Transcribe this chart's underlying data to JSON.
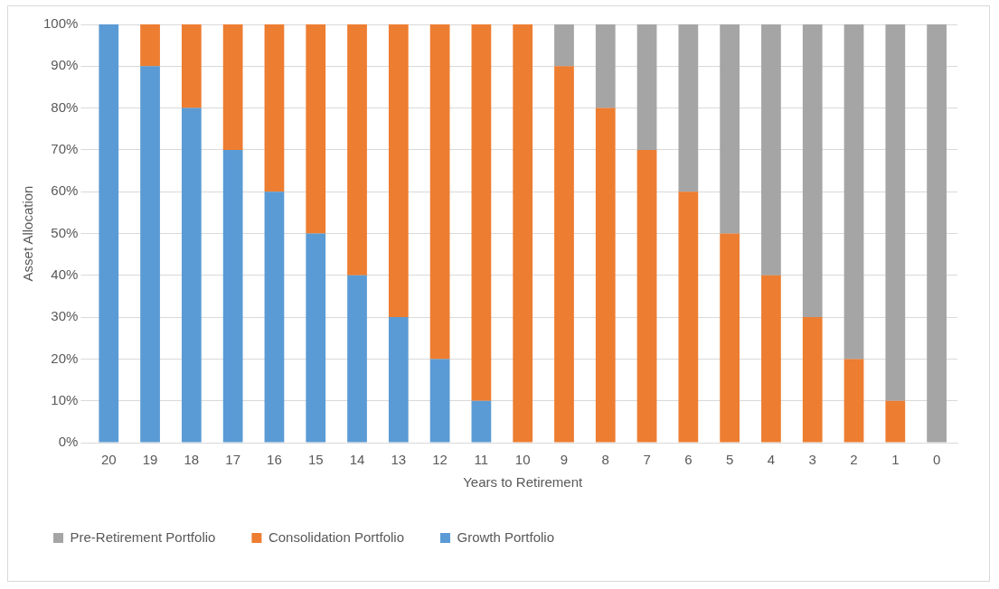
{
  "chart_data": {
    "type": "bar",
    "stacked": true,
    "xlabel": "Years to Retirement",
    "ylabel": "Asset Allocation",
    "categories": [
      "20",
      "19",
      "18",
      "17",
      "16",
      "15",
      "14",
      "13",
      "12",
      "11",
      "10",
      "9",
      "8",
      "7",
      "6",
      "5",
      "4",
      "3",
      "2",
      "1",
      "0"
    ],
    "series": [
      {
        "name": "Growth Portfolio",
        "color": "#5b9bd5",
        "values": [
          100,
          90,
          80,
          70,
          60,
          50,
          40,
          30,
          20,
          10,
          0,
          0,
          0,
          0,
          0,
          0,
          0,
          0,
          0,
          0,
          0
        ]
      },
      {
        "name": "Consolidation Portfolio",
        "color": "#ed7d31",
        "values": [
          0,
          10,
          20,
          30,
          40,
          50,
          60,
          70,
          80,
          90,
          100,
          90,
          80,
          70,
          60,
          50,
          40,
          30,
          20,
          10,
          0
        ]
      },
      {
        "name": "Pre-Retirement Portfolio",
        "color": "#a5a5a5",
        "values": [
          0,
          0,
          0,
          0,
          0,
          0,
          0,
          0,
          0,
          0,
          0,
          10,
          20,
          30,
          40,
          50,
          60,
          70,
          80,
          90,
          100
        ]
      }
    ],
    "ylim": [
      0,
      100
    ],
    "yticks": [
      {
        "value": 0,
        "label": "0%"
      },
      {
        "value": 10,
        "label": "10%"
      },
      {
        "value": 20,
        "label": "20%"
      },
      {
        "value": 30,
        "label": "30%"
      },
      {
        "value": 40,
        "label": "40%"
      },
      {
        "value": 50,
        "label": "50%"
      },
      {
        "value": 60,
        "label": "60%"
      },
      {
        "value": 70,
        "label": "70%"
      },
      {
        "value": 80,
        "label": "80%"
      },
      {
        "value": 90,
        "label": "90%"
      },
      {
        "value": 100,
        "label": "100%"
      }
    ],
    "grid": "y",
    "legend": "bottom"
  }
}
